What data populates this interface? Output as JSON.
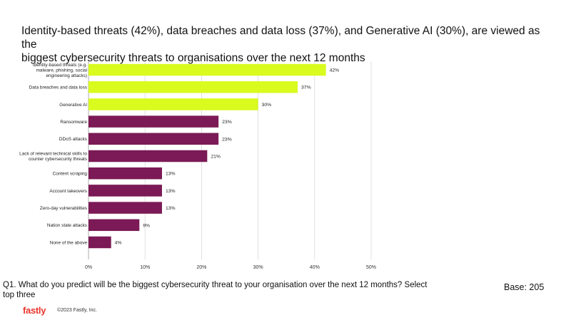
{
  "title_lines": [
    "Identity-based threats (42%), data breaches and data loss (37%), and Generative AI (30%), are viewed as the",
    "biggest cybersecurity threats to organisations over the next 12 months"
  ],
  "footnote": {
    "question_lines": [
      "Q1.  What do you predict will be the biggest cybersecurity threat to your organisation over the next 12 months? Select",
      "top three"
    ],
    "base": "Base: 205"
  },
  "footer": {
    "logo_text": "fastly",
    "copyright": "©2023 Fastly, Inc."
  },
  "colors": {
    "highlight": "#d9fb1e",
    "default": "#7b1a56",
    "logo": "#e8352b"
  },
  "chart_data": {
    "type": "bar",
    "orientation": "horizontal",
    "categories": [
      [
        "Identity-based threats (e.g.",
        "malware, phishing, social",
        "engineering attacks)"
      ],
      [
        "Data breaches and data loss"
      ],
      [
        "Generative AI"
      ],
      [
        "Ransomware"
      ],
      [
        "DDoS attacks"
      ],
      [
        "Lack of relevant technical skills to",
        "counter cybersecurity threats"
      ],
      [
        "Content scraping"
      ],
      [
        "Account takeovers"
      ],
      [
        "Zero-day vulnerabilities"
      ],
      [
        "Nation state attacks"
      ],
      [
        "None of the above"
      ]
    ],
    "values": [
      42,
      37,
      30,
      23,
      23,
      21,
      13,
      13,
      13,
      9,
      4
    ],
    "data_labels": [
      "42%",
      "37%",
      "30%",
      "23%",
      "23%",
      "21%",
      "13%",
      "13%",
      "13%",
      "9%",
      "4%"
    ],
    "highlighted": [
      true,
      true,
      true,
      false,
      false,
      false,
      false,
      false,
      false,
      false,
      false
    ],
    "xlim": [
      0,
      50
    ],
    "xticks": [
      0,
      10,
      20,
      30,
      40,
      50
    ],
    "xtick_labels": [
      "0%",
      "10%",
      "20%",
      "30%",
      "40%",
      "50%"
    ],
    "grid": "vertical",
    "legend": "none"
  }
}
